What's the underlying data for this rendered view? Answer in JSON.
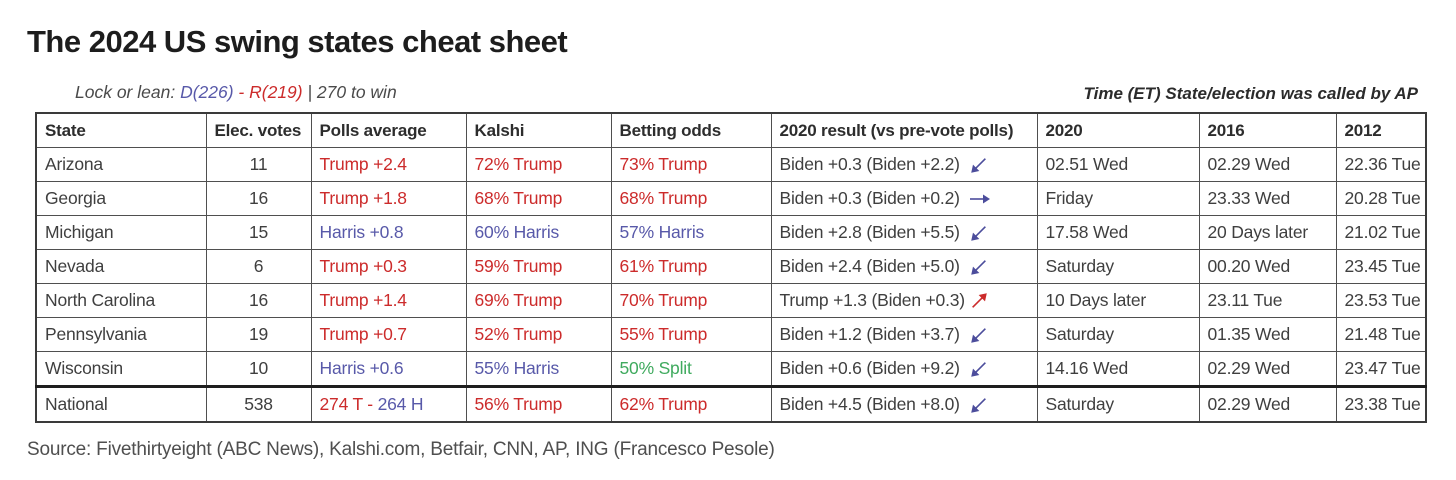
{
  "page": {
    "title": "The 2024 US swing states cheat sheet",
    "subtitle": {
      "prefix": "Lock or lean: ",
      "dem": "D(226)",
      "sep": " - ",
      "rep": "R(219)",
      "suffix": " | 270 to win"
    },
    "right_note": "Time (ET) State/election was called by AP",
    "source": "Source: Fivethirtyeight (ABC News), Kalshi.com, Betfair, CNN, AP, ING (Francesco Pesole)"
  },
  "colors": {
    "red": "#cc2b2b",
    "blue": "#5859a9",
    "green": "#3faa5e",
    "dark": "#3f3f3f",
    "arrow_blue": "#4c4d9c",
    "arrow_red": "#cc2b2b"
  },
  "chart_data": {
    "type": "table",
    "columns": [
      "State",
      "Elec. votes",
      "Polls average",
      "Kalshi",
      "Betting odds",
      "2020 result (vs pre-vote polls)",
      "2020",
      "2016",
      "2012"
    ],
    "rows": [
      {
        "state": "Arizona",
        "ev": "11",
        "polls": {
          "text": "Trump +2.4",
          "color": "red"
        },
        "kalshi": {
          "text": "72% Trump",
          "color": "red"
        },
        "betting": {
          "text": "73% Trump",
          "color": "red"
        },
        "result": {
          "text": "Biden +0.3 (Biden +2.2)",
          "arrow": "down-left",
          "arrow_color": "arrow_blue"
        },
        "t2020": "02.51 Wed",
        "t2016": "02.29 Wed",
        "t2012": "22.36 Tue"
      },
      {
        "state": "Georgia",
        "ev": "16",
        "polls": {
          "text": "Trump +1.8",
          "color": "red"
        },
        "kalshi": {
          "text": "68% Trump",
          "color": "red"
        },
        "betting": {
          "text": "68% Trump",
          "color": "red"
        },
        "result": {
          "text": "Biden +0.3 (Biden +0.2)",
          "arrow": "right",
          "arrow_color": "arrow_blue"
        },
        "t2020": "Friday",
        "t2016": "23.33 Wed",
        "t2012": "20.28 Tue"
      },
      {
        "state": "Michigan",
        "ev": "15",
        "polls": {
          "text": "Harris +0.8",
          "color": "blue"
        },
        "kalshi": {
          "text": "60% Harris",
          "color": "blue"
        },
        "betting": {
          "text": "57% Harris",
          "color": "blue"
        },
        "result": {
          "text": "Biden +2.8 (Biden +5.5)",
          "arrow": "down-left",
          "arrow_color": "arrow_blue"
        },
        "t2020": "17.58 Wed",
        "t2016": "20 Days later",
        "t2012": "21.02 Tue"
      },
      {
        "state": "Nevada",
        "ev": "6",
        "polls": {
          "text": "Trump +0.3",
          "color": "red"
        },
        "kalshi": {
          "text": "59% Trump",
          "color": "red"
        },
        "betting": {
          "text": "61% Trump",
          "color": "red"
        },
        "result": {
          "text": "Biden +2.4 (Biden +5.0)",
          "arrow": "down-left",
          "arrow_color": "arrow_blue"
        },
        "t2020": "Saturday",
        "t2016": "00.20 Wed",
        "t2012": "23.45 Tue"
      },
      {
        "state": "North Carolina",
        "ev": "16",
        "polls": {
          "text": "Trump +1.4",
          "color": "red"
        },
        "kalshi": {
          "text": "69% Trump",
          "color": "red"
        },
        "betting": {
          "text": "70% Trump",
          "color": "red"
        },
        "result": {
          "text": "Trump +1.3 (Biden +0.3)",
          "arrow": "up-right",
          "arrow_color": "arrow_red"
        },
        "t2020": "10 Days later",
        "t2016": "23.11 Tue",
        "t2012": "23.53 Tue"
      },
      {
        "state": "Pennsylvania",
        "ev": "19",
        "polls": {
          "text": "Trump +0.7",
          "color": "red"
        },
        "kalshi": {
          "text": "52% Trump",
          "color": "red"
        },
        "betting": {
          "text": "55% Trump",
          "color": "red"
        },
        "result": {
          "text": "Biden +1.2 (Biden +3.7)",
          "arrow": "down-left",
          "arrow_color": "arrow_blue"
        },
        "t2020": "Saturday",
        "t2016": "01.35 Wed",
        "t2012": "21.48 Tue"
      },
      {
        "state": "Wisconsin",
        "ev": "10",
        "polls": {
          "text": "Harris +0.6",
          "color": "blue"
        },
        "kalshi": {
          "text": "55% Harris",
          "color": "blue"
        },
        "betting": {
          "text": "50% Split",
          "color": "green"
        },
        "result": {
          "text": "Biden +0.6 (Biden +9.2)",
          "arrow": "down-left",
          "arrow_color": "arrow_blue"
        },
        "t2020": "14.16 Wed",
        "t2016": "02.29 Wed",
        "t2012": "23.47 Tue"
      },
      {
        "state": "National",
        "ev": "538",
        "national": true,
        "polls": {
          "parts": [
            {
              "text": "274 T - ",
              "color": "red"
            },
            {
              "text": "264 H",
              "color": "blue"
            }
          ]
        },
        "kalshi": {
          "text": "56% Trump",
          "color": "red"
        },
        "betting": {
          "text": "62% Trump",
          "color": "red"
        },
        "result": {
          "text": "Biden +4.5 (Biden +8.0)",
          "arrow": "down-left",
          "arrow_color": "arrow_blue"
        },
        "t2020": "Saturday",
        "t2016": "02.29 Wed",
        "t2012": "23.38 Tue"
      }
    ]
  }
}
